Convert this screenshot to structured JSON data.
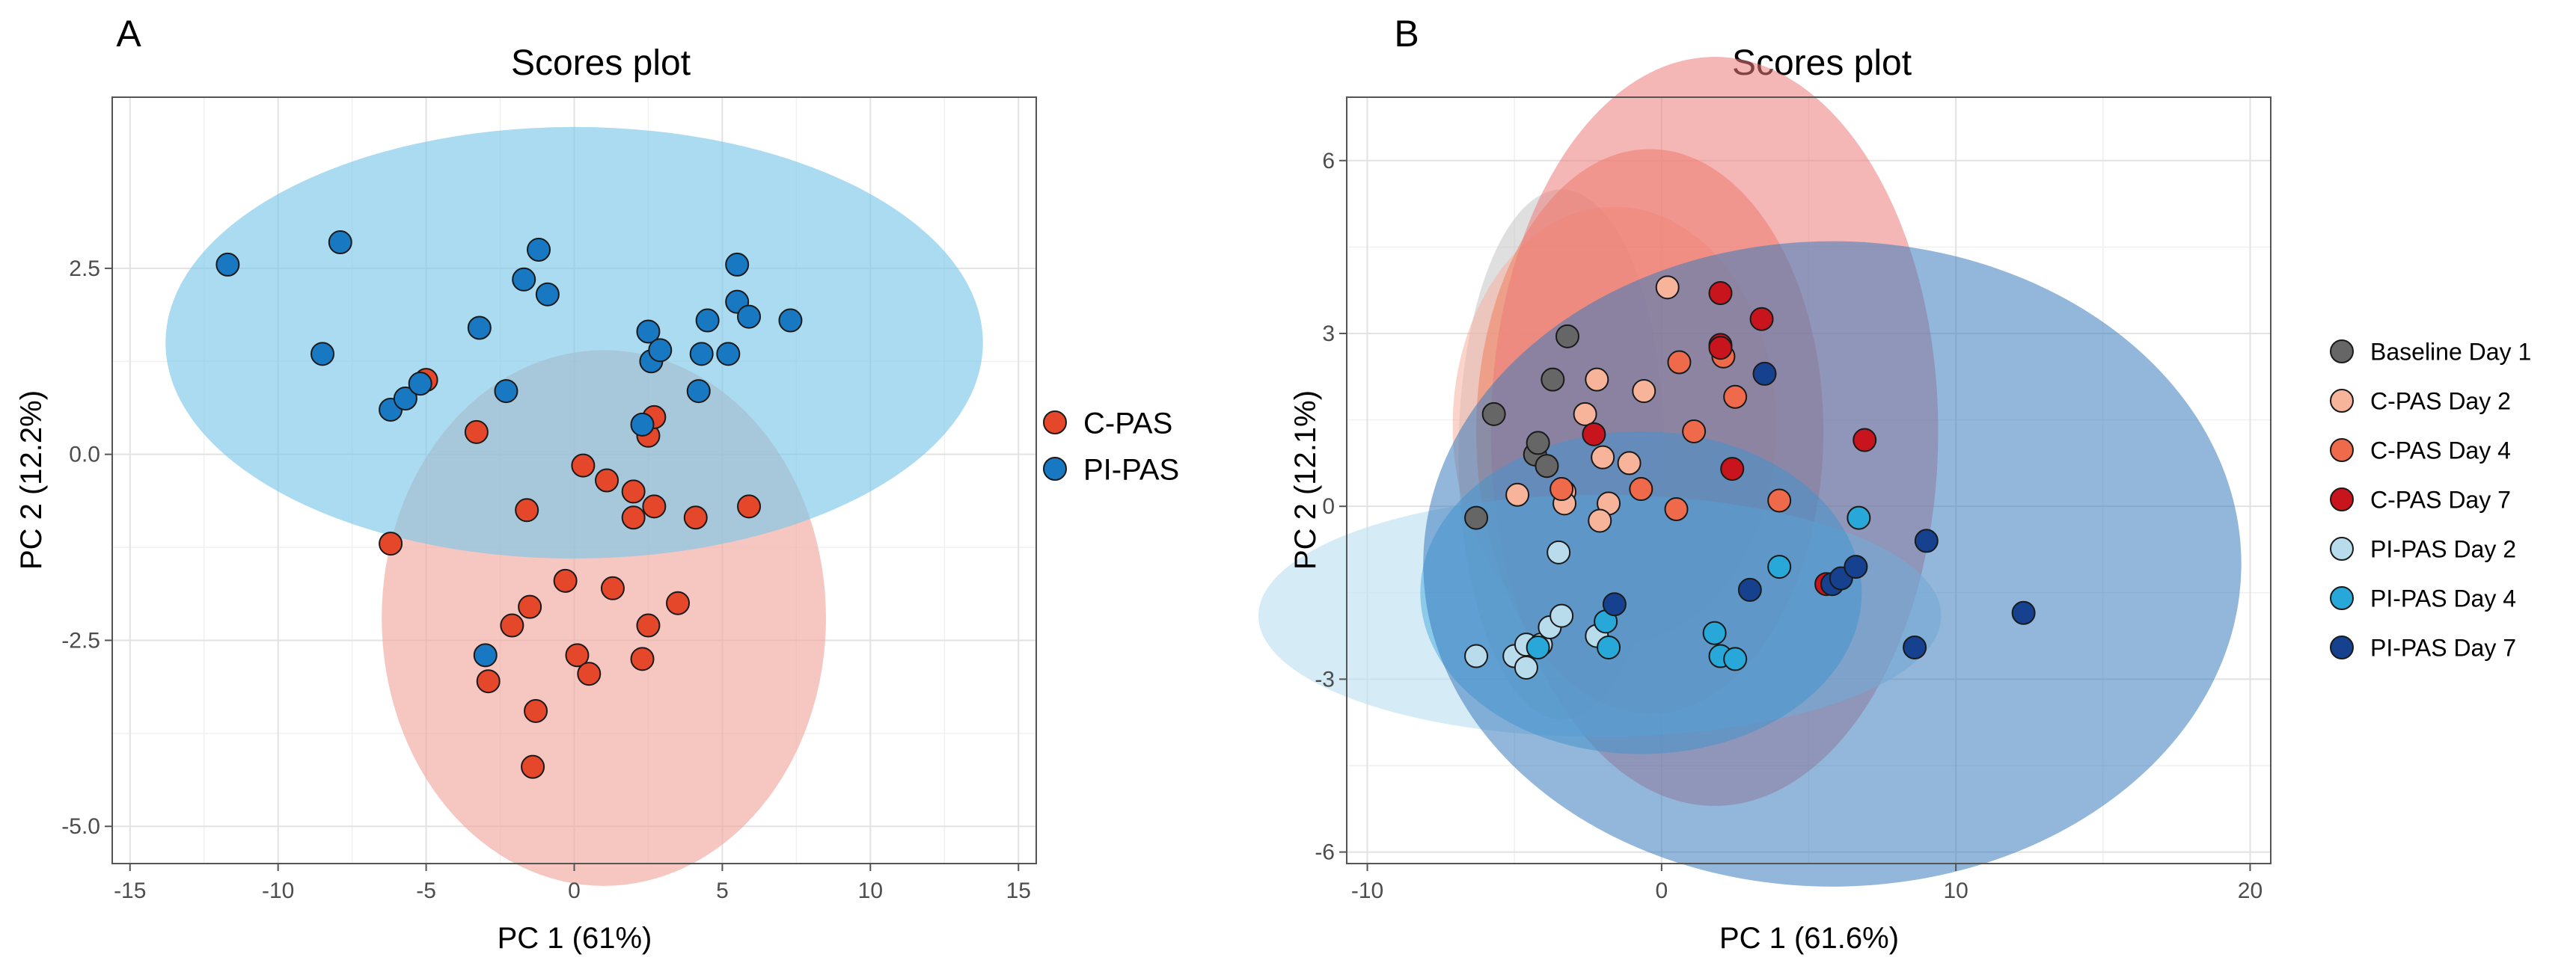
{
  "figure": {
    "panel_a_letter": "A",
    "panel_b_letter": "B"
  },
  "chart_data": [
    {
      "type": "scatter",
      "panel": "A",
      "title": "Scores plot",
      "xlabel": "PC 1 (61%)",
      "ylabel": "PC 2 (12.2%)",
      "xlim": [
        -15.6,
        15.6
      ],
      "ylim": [
        -5.5,
        4.8
      ],
      "xticks": [
        -15,
        -10,
        -5,
        0,
        5,
        10,
        15
      ],
      "xtick_labels": [
        "-15",
        "-10",
        "-5",
        "0",
        "5",
        "10",
        "15"
      ],
      "yticks": [
        -5.0,
        -2.5,
        0.0,
        2.5
      ],
      "ytick_labels": [
        "-5.0",
        "-2.5",
        "0.0",
        "2.5"
      ],
      "grid": true,
      "legend_position": "right",
      "series": [
        {
          "name": "C-PAS",
          "color": "#e4472a",
          "ellipse": {
            "cx": 1.0,
            "cy": -2.2,
            "rx": 7.5,
            "ry": 3.6,
            "color": "#f1a8a0",
            "opacity": 0.65
          },
          "points": [
            [
              -5.0,
              1.0
            ],
            [
              -3.3,
              0.3
            ],
            [
              -6.2,
              -1.2
            ],
            [
              0.3,
              -0.15
            ],
            [
              1.1,
              -0.35
            ],
            [
              -1.6,
              -0.75
            ],
            [
              2.0,
              -0.5
            ],
            [
              2.7,
              -0.7
            ],
            [
              2.0,
              -0.85
            ],
            [
              4.1,
              -0.85
            ],
            [
              5.9,
              -0.7
            ],
            [
              2.5,
              0.25
            ],
            [
              2.7,
              0.5
            ],
            [
              -0.3,
              -1.7
            ],
            [
              1.3,
              -1.8
            ],
            [
              3.5,
              -2.0
            ],
            [
              -1.5,
              -2.05
            ],
            [
              -2.1,
              -2.3
            ],
            [
              2.5,
              -2.3
            ],
            [
              0.1,
              -2.7
            ],
            [
              0.5,
              -2.95
            ],
            [
              2.3,
              -2.75
            ],
            [
              -2.9,
              -3.05
            ],
            [
              -1.3,
              -3.45
            ],
            [
              -1.4,
              -4.2
            ]
          ]
        },
        {
          "name": "PI-PAS",
          "color": "#1879c2",
          "ellipse": {
            "cx": 0.0,
            "cy": 1.5,
            "rx": 13.8,
            "ry": 2.9,
            "color": "#7cc8e8",
            "opacity": 0.65
          },
          "points": [
            [
              -11.7,
              2.55
            ],
            [
              -7.9,
              2.85
            ],
            [
              -8.5,
              1.35
            ],
            [
              -6.2,
              0.6
            ],
            [
              -5.7,
              0.75
            ],
            [
              -5.2,
              0.95
            ],
            [
              -3.2,
              1.7
            ],
            [
              -2.3,
              0.85
            ],
            [
              -1.7,
              2.35
            ],
            [
              -1.2,
              2.75
            ],
            [
              -0.9,
              2.15
            ],
            [
              2.5,
              1.65
            ],
            [
              2.6,
              1.25
            ],
            [
              2.9,
              1.4
            ],
            [
              4.2,
              0.85
            ],
            [
              4.3,
              1.35
            ],
            [
              4.5,
              1.8
            ],
            [
              5.2,
              1.35
            ],
            [
              5.5,
              2.55
            ],
            [
              5.5,
              2.05
            ],
            [
              5.9,
              1.85
            ],
            [
              7.3,
              1.8
            ],
            [
              -3.0,
              -2.7
            ],
            [
              2.3,
              0.4
            ]
          ]
        }
      ]
    },
    {
      "type": "scatter",
      "panel": "B",
      "title": "Scores plot",
      "xlabel": "PC 1 (61.6%)",
      "ylabel": "PC 2 (12.1%)",
      "xlim": [
        -10.7,
        20.7
      ],
      "ylim": [
        -6.2,
        7.1
      ],
      "xticks": [
        -10,
        0,
        10,
        20
      ],
      "xtick_labels": [
        "-10",
        "0",
        "10",
        "20"
      ],
      "yticks": [
        -6,
        -3,
        0,
        3,
        6
      ],
      "ytick_labels": [
        "-6",
        "-3",
        "0",
        "3",
        "6"
      ],
      "grid": true,
      "legend_position": "right",
      "series": [
        {
          "name": "Baseline Day 1",
          "color": "#666666",
          "ellipse": {
            "cx": -3.4,
            "cy": 0.9,
            "rx": 3.5,
            "ry": 4.6,
            "color": "#c4c4c4",
            "opacity": 0.55
          },
          "points": [
            [
              -6.3,
              -0.2
            ],
            [
              -5.7,
              1.6
            ],
            [
              -4.3,
              0.9
            ],
            [
              -4.2,
              1.1
            ],
            [
              -3.9,
              0.7
            ],
            [
              -3.7,
              2.2
            ],
            [
              -3.2,
              2.95
            ]
          ]
        },
        {
          "name": "C-PAS Day 2",
          "color": "#f7b49b",
          "ellipse": {
            "cx": -1.6,
            "cy": 1.4,
            "rx": 5.5,
            "ry": 3.8,
            "color": "#f5b09e",
            "opacity": 0.55
          },
          "points": [
            [
              0.2,
              3.8
            ],
            [
              -2.2,
              2.2
            ],
            [
              -0.6,
              2.0
            ],
            [
              -2.6,
              1.6
            ],
            [
              -1.1,
              0.75
            ],
            [
              -2.0,
              0.85
            ],
            [
              -4.9,
              0.2
            ],
            [
              -3.3,
              0.25
            ],
            [
              -1.8,
              0.05
            ],
            [
              -2.1,
              -0.25
            ],
            [
              -3.3,
              0.05
            ]
          ]
        },
        {
          "name": "C-PAS Day 4",
          "color": "#ee6a4a",
          "ellipse": {
            "cx": -0.4,
            "cy": 1.3,
            "rx": 5.9,
            "ry": 4.9,
            "color": "#f0805f",
            "opacity": 0.55
          },
          "points": [
            [
              0.6,
              2.5
            ],
            [
              2.1,
              2.6
            ],
            [
              2.5,
              1.9
            ],
            [
              1.1,
              1.3
            ],
            [
              -3.4,
              0.3
            ],
            [
              -0.7,
              0.3
            ],
            [
              0.5,
              -0.05
            ],
            [
              4.0,
              0.1
            ]
          ]
        },
        {
          "name": "C-PAS Day 7",
          "color": "#c8141c",
          "ellipse": {
            "cx": 1.8,
            "cy": 1.3,
            "rx": 7.6,
            "ry": 6.5,
            "color": "#ec7a7a",
            "opacity": 0.55
          },
          "points": [
            [
              2.0,
              3.7
            ],
            [
              3.4,
              3.25
            ],
            [
              2.0,
              2.8
            ],
            [
              2.0,
              2.75
            ],
            [
              -2.3,
              1.25
            ],
            [
              2.4,
              0.65
            ],
            [
              6.9,
              1.15
            ],
            [
              5.6,
              -1.35
            ]
          ]
        },
        {
          "name": "PI-PAS Day 2",
          "color": "#b9dcec",
          "ellipse": {
            "cx": -2.1,
            "cy": -1.9,
            "rx": 11.6,
            "ry": 2.1,
            "color": "#bfe0f0",
            "opacity": 0.65
          },
          "points": [
            [
              -6.3,
              -2.6
            ],
            [
              -5.0,
              -2.6
            ],
            [
              -4.6,
              -2.8
            ],
            [
              -4.6,
              -2.4
            ],
            [
              -4.1,
              -2.4
            ],
            [
              -3.8,
              -2.1
            ],
            [
              -3.4,
              -1.9
            ],
            [
              -3.5,
              -0.8
            ],
            [
              -2.2,
              -2.25
            ]
          ]
        },
        {
          "name": "PI-PAS Day 4",
          "color": "#27a8d8",
          "ellipse": {
            "cx": -0.7,
            "cy": -1.5,
            "rx": 7.5,
            "ry": 2.8,
            "color": "#50aee0",
            "opacity": 0.55
          },
          "points": [
            [
              -4.2,
              -2.45
            ],
            [
              -1.9,
              -2.0
            ],
            [
              -1.8,
              -2.45
            ],
            [
              1.8,
              -2.2
            ],
            [
              2.0,
              -2.6
            ],
            [
              2.5,
              -2.65
            ],
            [
              4.0,
              -1.05
            ],
            [
              6.7,
              -0.2
            ]
          ]
        },
        {
          "name": "PI-PAS Day 7",
          "color": "#16418f",
          "ellipse": {
            "cx": 5.8,
            "cy": -1.0,
            "rx": 13.9,
            "ry": 5.6,
            "color": "#3a7cbc",
            "opacity": 0.55
          },
          "points": [
            [
              3.5,
              2.3
            ],
            [
              -1.6,
              -1.7
            ],
            [
              3.0,
              -1.45
            ],
            [
              5.8,
              -1.35
            ],
            [
              6.1,
              -1.25
            ],
            [
              6.6,
              -1.05
            ],
            [
              9.0,
              -0.6
            ],
            [
              12.3,
              -1.85
            ],
            [
              8.6,
              -2.45
            ]
          ]
        }
      ]
    }
  ]
}
